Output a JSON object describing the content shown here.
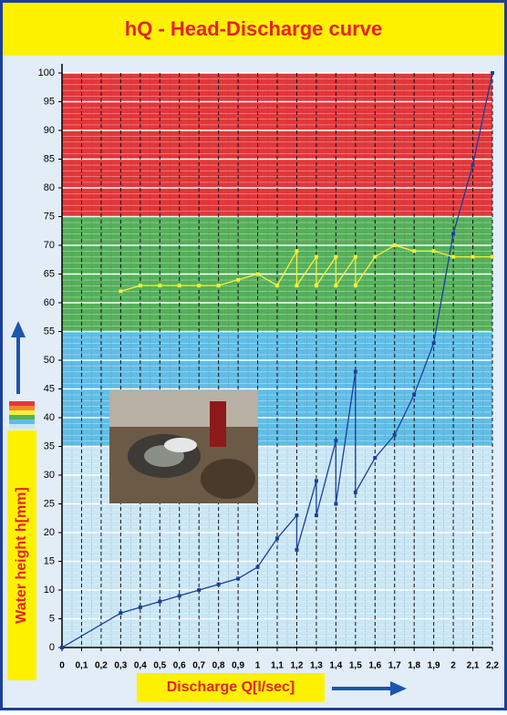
{
  "chart_data": {
    "type": "line",
    "title": "hQ - Head-Discharge curve",
    "xlabel": "Discharge Q[l/sec]",
    "ylabel": "Water height h[mm]",
    "xlim": [
      0,
      2.2
    ],
    "ylim": [
      0,
      100
    ],
    "xticks": [
      0,
      {
        "value": 0.1,
        "label": "0,1"
      },
      {
        "value": 0.2,
        "label": "0,2"
      },
      {
        "value": 0.3,
        "label": "0,3"
      },
      {
        "value": 0.4,
        "label": "0,4"
      },
      {
        "value": 0.5,
        "label": "0,5"
      },
      {
        "value": 0.6,
        "label": "0,6"
      },
      {
        "value": 0.7,
        "label": "0,7"
      },
      {
        "value": 0.8,
        "label": "0,8"
      },
      {
        "value": 0.9,
        "label": "0,9"
      },
      1,
      {
        "value": 1.1,
        "label": "1,1"
      },
      {
        "value": 1.2,
        "label": "1,2"
      },
      {
        "value": 1.3,
        "label": "1,3"
      },
      {
        "value": 1.4,
        "label": "1,4"
      },
      {
        "value": 1.5,
        "label": "1,5"
      },
      {
        "value": 1.6,
        "label": "1,6"
      },
      {
        "value": 1.7,
        "label": "1,7"
      },
      {
        "value": 1.8,
        "label": "1,8"
      },
      {
        "value": 1.9,
        "label": "1,9"
      },
      2,
      {
        "value": 2.1,
        "label": "2,1"
      },
      {
        "value": 2.2,
        "label": "2,2"
      }
    ],
    "yticks": [
      0,
      5,
      10,
      15,
      20,
      25,
      30,
      35,
      40,
      45,
      50,
      55,
      60,
      65,
      70,
      75,
      80,
      85,
      90,
      95,
      100
    ],
    "grid": true,
    "bands": [
      {
        "from": 0,
        "to": 35,
        "color": "#c9e6f5"
      },
      {
        "from": 35,
        "to": 55,
        "color": "#5fbde6"
      },
      {
        "from": 55,
        "to": 75,
        "color": "#55b05a"
      },
      {
        "from": 75,
        "to": 100,
        "color": "#e2373a"
      }
    ],
    "series": [
      {
        "color": "#1c3f9a",
        "x": [
          0,
          0.3,
          0.4,
          0.5,
          0.6,
          0.7,
          0.8,
          0.9,
          1.0,
          1.1,
          1.2,
          1.2,
          1.3,
          1.3,
          1.4,
          1.4,
          1.5,
          1.5,
          1.6,
          1.7,
          1.8,
          1.9,
          2.0,
          2.1,
          2.2
        ],
        "values": [
          0,
          6,
          7,
          8,
          9,
          10,
          11,
          12,
          14,
          19,
          23,
          17,
          29,
          23,
          36,
          25,
          48,
          27,
          33,
          37,
          44,
          53,
          72,
          84,
          100
        ]
      },
      {
        "color": "#f5f03a",
        "x": [
          0.3,
          0.4,
          0.5,
          0.6,
          0.7,
          0.8,
          0.9,
          1.0,
          1.1,
          1.2,
          1.2,
          1.3,
          1.3,
          1.4,
          1.4,
          1.5,
          1.5,
          1.6,
          1.7,
          1.8,
          1.9,
          2.0,
          2.1,
          2.2
        ],
        "values": [
          62,
          63,
          63,
          63,
          63,
          63,
          64,
          65,
          63,
          69,
          63,
          68,
          63,
          68,
          63,
          68,
          63,
          68,
          70,
          69,
          69,
          68,
          68,
          68
        ]
      }
    ]
  }
}
